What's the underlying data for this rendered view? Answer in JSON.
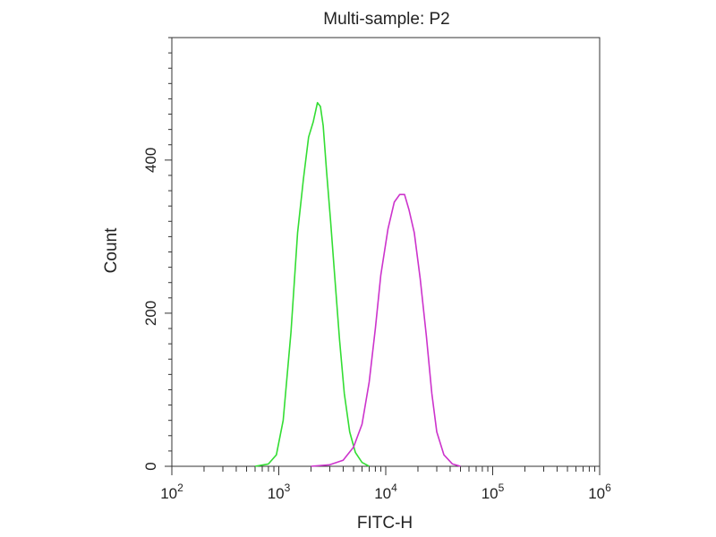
{
  "chart_data": {
    "type": "line",
    "title": "Multi-sample: P2",
    "xlabel": "FITC-H",
    "ylabel": "Count",
    "x_scale": "log",
    "xlim": [
      100,
      1000000
    ],
    "ylim": [
      0,
      560
    ],
    "x_ticks": [
      {
        "value": 100,
        "base": "10",
        "exp": "2"
      },
      {
        "value": 1000,
        "base": "10",
        "exp": "3"
      },
      {
        "value": 10000,
        "base": "10",
        "exp": "4"
      },
      {
        "value": 100000,
        "base": "10",
        "exp": "5"
      },
      {
        "value": 1000000,
        "base": "10",
        "exp": "6"
      }
    ],
    "y_ticks": [
      {
        "value": 0,
        "label": "0"
      },
      {
        "value": 200,
        "label": "200"
      },
      {
        "value": 400,
        "label": "400"
      }
    ],
    "grid": false,
    "series": [
      {
        "color": "#33dd33",
        "x": [
          600,
          800,
          950,
          1100,
          1300,
          1500,
          1700,
          1900,
          2100,
          2300,
          2450,
          2600,
          2800,
          3050,
          3350,
          3700,
          4100,
          4600,
          5200,
          6000,
          7000
        ],
        "y": [
          0,
          3,
          15,
          60,
          175,
          305,
          375,
          430,
          450,
          475,
          470,
          445,
          385,
          320,
          245,
          165,
          95,
          45,
          18,
          5,
          0
        ]
      },
      {
        "color": "#cc33cc",
        "x": [
          2000,
          3000,
          4000,
          5000,
          6000,
          7000,
          8000,
          9000,
          10500,
          12000,
          13500,
          15000,
          16500,
          18500,
          21000,
          24000,
          27000,
          30000,
          35000,
          42000,
          50000
        ],
        "y": [
          0,
          2,
          8,
          25,
          55,
          110,
          180,
          250,
          310,
          345,
          355,
          355,
          335,
          305,
          245,
          170,
          95,
          45,
          15,
          3,
          0
        ]
      }
    ]
  }
}
